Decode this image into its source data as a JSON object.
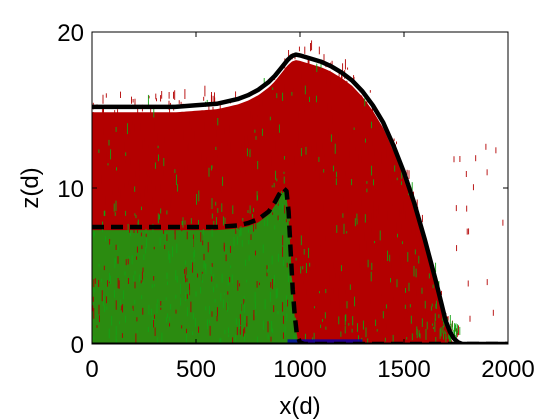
{
  "chart_data": {
    "type": "line",
    "xlabel": "x(d)",
    "ylabel": "z(d)",
    "xlim": [
      0,
      2000
    ],
    "ylim": [
      0,
      20
    ],
    "x_ticks": [
      "0",
      "500",
      "1000",
      "1500",
      "2000"
    ],
    "y_ticks": [
      "0",
      "10",
      "20"
    ],
    "grid": false,
    "legend": "none",
    "series": [
      {
        "style": "solid",
        "color": "#000000",
        "x": [
          0,
          100,
          200,
          300,
          400,
          500,
          600,
          700,
          750,
          800,
          850,
          880,
          910,
          940,
          960,
          980,
          1000,
          1050,
          1100,
          1150,
          1200,
          1250,
          1300,
          1350,
          1400,
          1450,
          1500,
          1550,
          1600,
          1650,
          1680,
          1700,
          1720,
          1740,
          1760,
          1780,
          1800,
          1900,
          2000
        ],
        "y": [
          15.2,
          15.2,
          15.2,
          15.2,
          15.2,
          15.3,
          15.4,
          15.7,
          15.95,
          16.3,
          16.8,
          17.2,
          17.7,
          18.2,
          18.45,
          18.55,
          18.5,
          18.3,
          18.1,
          17.8,
          17.4,
          16.9,
          16.2,
          15.3,
          14.2,
          12.7,
          11.0,
          9.0,
          6.7,
          4.2,
          2.6,
          1.5,
          0.8,
          0.35,
          0.1,
          0.0,
          0.0,
          0.0,
          0.0
        ]
      },
      {
        "style": "dashed",
        "color": "#000000",
        "x": [
          0,
          100,
          200,
          300,
          400,
          500,
          600,
          700,
          750,
          800,
          850,
          880,
          900,
          920,
          935,
          945,
          955,
          965,
          975,
          985,
          1000,
          1020,
          1100,
          1500,
          2000
        ],
        "y": [
          7.5,
          7.5,
          7.5,
          7.5,
          7.5,
          7.5,
          7.5,
          7.6,
          7.75,
          8.0,
          8.5,
          9.1,
          9.6,
          10.0,
          9.8,
          8.5,
          6.0,
          3.5,
          1.8,
          0.6,
          0.1,
          0.0,
          0.0,
          0.0,
          0.0
        ]
      },
      {
        "style": "solid",
        "color": "#000000",
        "x": [
          0,
          2000
        ],
        "y": [
          0,
          0
        ]
      }
    ],
    "fill_colors": {
      "upper": "#b30000",
      "lower": "#13a313",
      "base": "#0000b0"
    }
  }
}
